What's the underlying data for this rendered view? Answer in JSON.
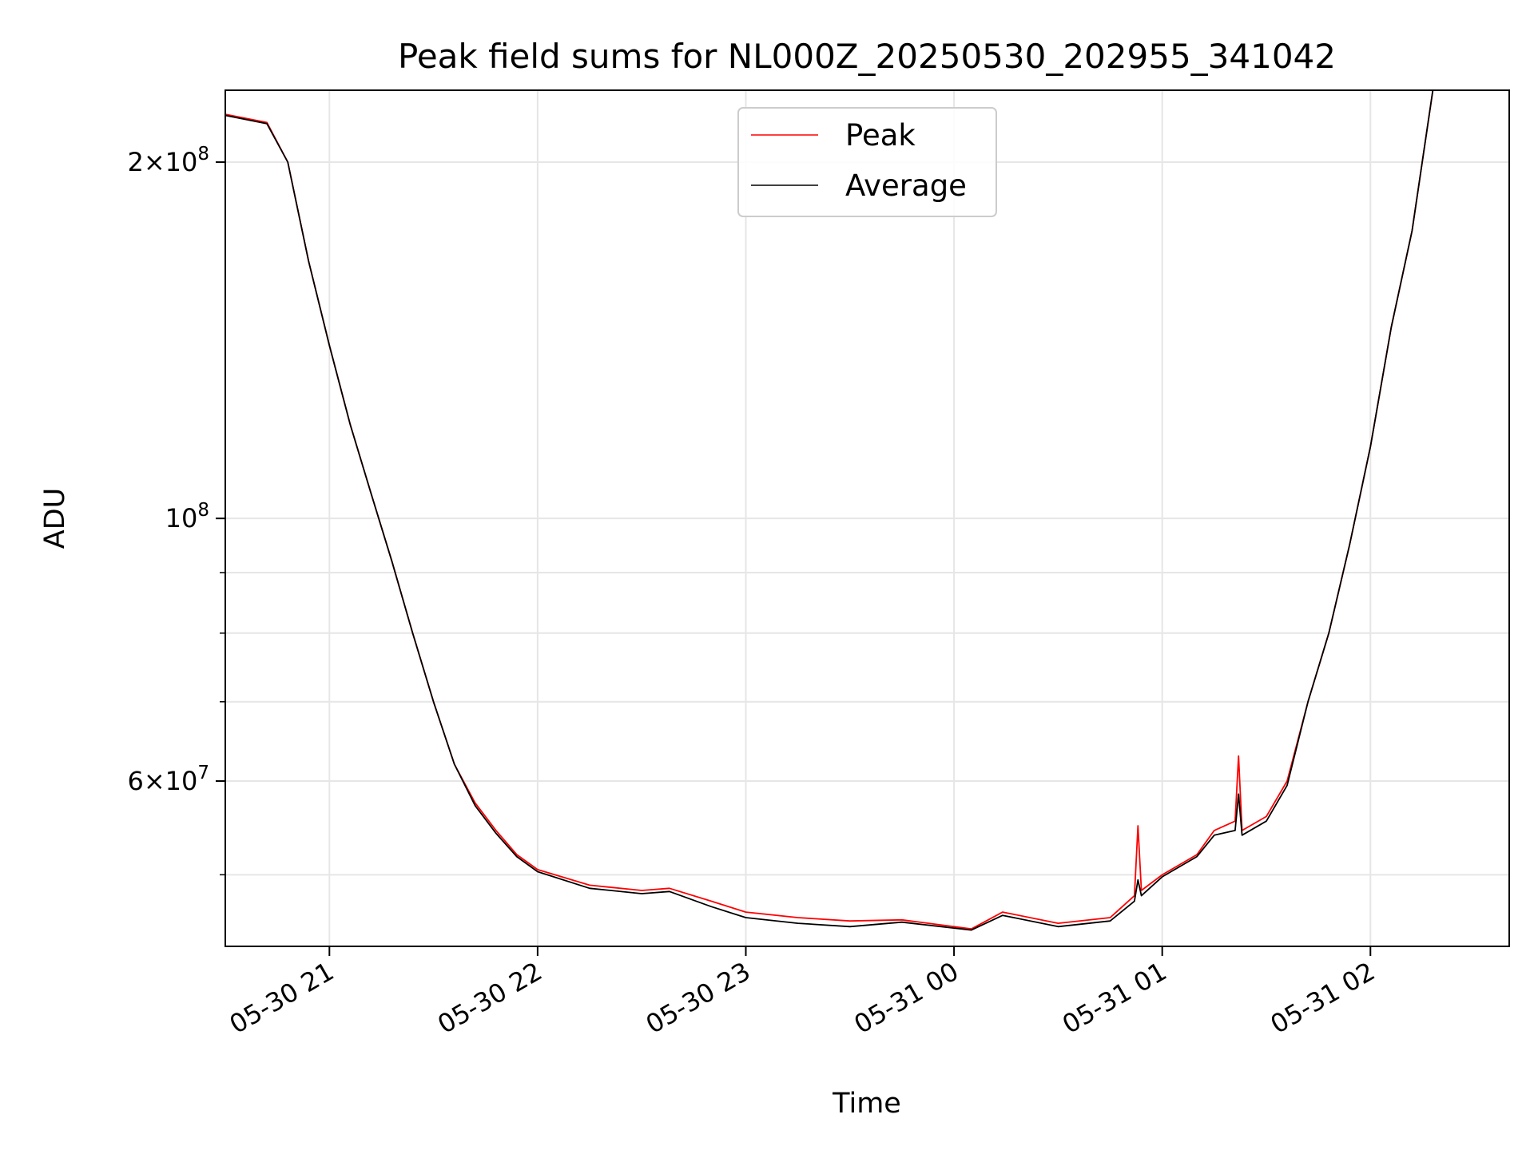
{
  "chart_data": {
    "type": "line",
    "title": "Peak field sums for NL000Z_20250530_202955_341042",
    "xlabel": "Time",
    "ylabel": "ADU",
    "x_units": "hours since 2025-05-30 00:00",
    "xlim": [
      "05-30 20:30",
      "05-31 02:40"
    ],
    "ylim": [
      43500000,
      230000000
    ],
    "yscale": "log",
    "grid": true,
    "legend_position": "top-center",
    "x_ticks": [
      "05-30 21",
      "05-30 22",
      "05-30 23",
      "05-31 00",
      "05-31 01",
      "05-31 02"
    ],
    "y_ticks": [
      {
        "value": 200000000,
        "mantissa": "2×10",
        "exp": "8"
      },
      {
        "value": 100000000,
        "mantissa": "10",
        "exp": "8"
      },
      {
        "value": 60000000,
        "mantissa": "6×10",
        "exp": "7"
      }
    ],
    "series": [
      {
        "name": "Peak",
        "color": "#ff0000",
        "points": [
          [
            "05-30 20:30",
            219500000.0
          ],
          [
            "05-30 20:42",
            216000000.0
          ],
          [
            "05-30 20:48",
            200000000.0
          ],
          [
            "05-30 20:54",
            165000000.0
          ],
          [
            "05-30 21:00",
            140000000.0
          ],
          [
            "05-30 21:06",
            120000000.0
          ],
          [
            "05-30 21:12",
            105000000.0
          ],
          [
            "05-30 21:18",
            92000000.0
          ],
          [
            "05-30 21:24",
            80000000.0
          ],
          [
            "05-30 21:30",
            70000000.0
          ],
          [
            "05-30 21:36",
            62000000.0
          ],
          [
            "05-30 21:42",
            57500000.0
          ],
          [
            "05-30 21:48",
            54500000.0
          ],
          [
            "05-30 21:54",
            52000000.0
          ],
          [
            "05-30 22:00",
            50500000.0
          ],
          [
            "05-30 22:15",
            49000000.0
          ],
          [
            "05-30 22:30",
            48500000.0
          ],
          [
            "05-30 22:38",
            48700000.0
          ],
          [
            "05-30 22:50",
            47500000.0
          ],
          [
            "05-30 23:00",
            46500000.0
          ],
          [
            "05-30 23:15",
            46000000.0
          ],
          [
            "05-30 23:30",
            45700000.0
          ],
          [
            "05-30 23:45",
            45800000.0
          ],
          [
            "05-31 00:05",
            45000000.0
          ],
          [
            "05-31 00:14",
            46500000.0
          ],
          [
            "05-31 00:30",
            45500000.0
          ],
          [
            "05-31 00:45",
            46000000.0
          ],
          [
            "05-31 00:52",
            48000000.0
          ],
          [
            "05-31 00:53",
            55000000.0
          ],
          [
            "05-31 00:54",
            48500000.0
          ],
          [
            "05-31 01:00",
            50000000.0
          ],
          [
            "05-31 01:10",
            52000000.0
          ],
          [
            "05-31 01:15",
            54500000.0
          ],
          [
            "05-31 01:21",
            55500000.0
          ],
          [
            "05-31 01:22",
            63000000.0
          ],
          [
            "05-31 01:23",
            54500000.0
          ],
          [
            "05-31 01:30",
            56000000.0
          ],
          [
            "05-31 01:36",
            60000000.0
          ],
          [
            "05-31 01:42",
            70000000.0
          ],
          [
            "05-31 01:48",
            80000000.0
          ],
          [
            "05-31 01:54",
            95000000.0
          ],
          [
            "05-31 02:00",
            115000000.0
          ],
          [
            "05-31 02:06",
            145000000.0
          ],
          [
            "05-31 02:12",
            175000000.0
          ],
          [
            "05-31 02:18",
            230000000.0
          ]
        ]
      },
      {
        "name": "Average",
        "color": "#000000",
        "points": [
          [
            "05-30 20:30",
            219000000.0
          ],
          [
            "05-30 20:42",
            215500000.0
          ],
          [
            "05-30 20:48",
            200000000.0
          ],
          [
            "05-30 20:54",
            165000000.0
          ],
          [
            "05-30 21:00",
            140000000.0
          ],
          [
            "05-30 21:06",
            120000000.0
          ],
          [
            "05-30 21:12",
            105000000.0
          ],
          [
            "05-30 21:18",
            92000000.0
          ],
          [
            "05-30 21:24",
            80000000.0
          ],
          [
            "05-30 21:30",
            70000000.0
          ],
          [
            "05-30 21:36",
            62000000.0
          ],
          [
            "05-30 21:42",
            57200000.0
          ],
          [
            "05-30 21:48",
            54200000.0
          ],
          [
            "05-30 21:54",
            51800000.0
          ],
          [
            "05-30 22:00",
            50300000.0
          ],
          [
            "05-30 22:15",
            48700000.0
          ],
          [
            "05-30 22:30",
            48200000.0
          ],
          [
            "05-30 22:38",
            48400000.0
          ],
          [
            "05-30 22:50",
            47000000.0
          ],
          [
            "05-30 23:00",
            46000000.0
          ],
          [
            "05-30 23:15",
            45500000.0
          ],
          [
            "05-30 23:30",
            45200000.0
          ],
          [
            "05-30 23:45",
            45600000.0
          ],
          [
            "05-31 00:05",
            44900000.0
          ],
          [
            "05-31 00:14",
            46200000.0
          ],
          [
            "05-31 00:30",
            45200000.0
          ],
          [
            "05-31 00:45",
            45700000.0
          ],
          [
            "05-31 00:52",
            47500000.0
          ],
          [
            "05-31 00:53",
            49500000.0
          ],
          [
            "05-31 00:54",
            48000000.0
          ],
          [
            "05-31 01:00",
            49800000.0
          ],
          [
            "05-31 01:10",
            51800000.0
          ],
          [
            "05-31 01:15",
            54000000.0
          ],
          [
            "05-31 01:21",
            54500000.0
          ],
          [
            "05-31 01:22",
            58500000.0
          ],
          [
            "05-31 01:23",
            54000000.0
          ],
          [
            "05-31 01:30",
            55500000.0
          ],
          [
            "05-31 01:36",
            59500000.0
          ],
          [
            "05-31 01:42",
            70000000.0
          ],
          [
            "05-31 01:48",
            80000000.0
          ],
          [
            "05-31 01:54",
            95000000.0
          ],
          [
            "05-31 02:00",
            115000000.0
          ],
          [
            "05-31 02:06",
            145000000.0
          ],
          [
            "05-31 02:12",
            175000000.0
          ],
          [
            "05-31 02:18",
            230000000.0
          ]
        ]
      }
    ]
  }
}
